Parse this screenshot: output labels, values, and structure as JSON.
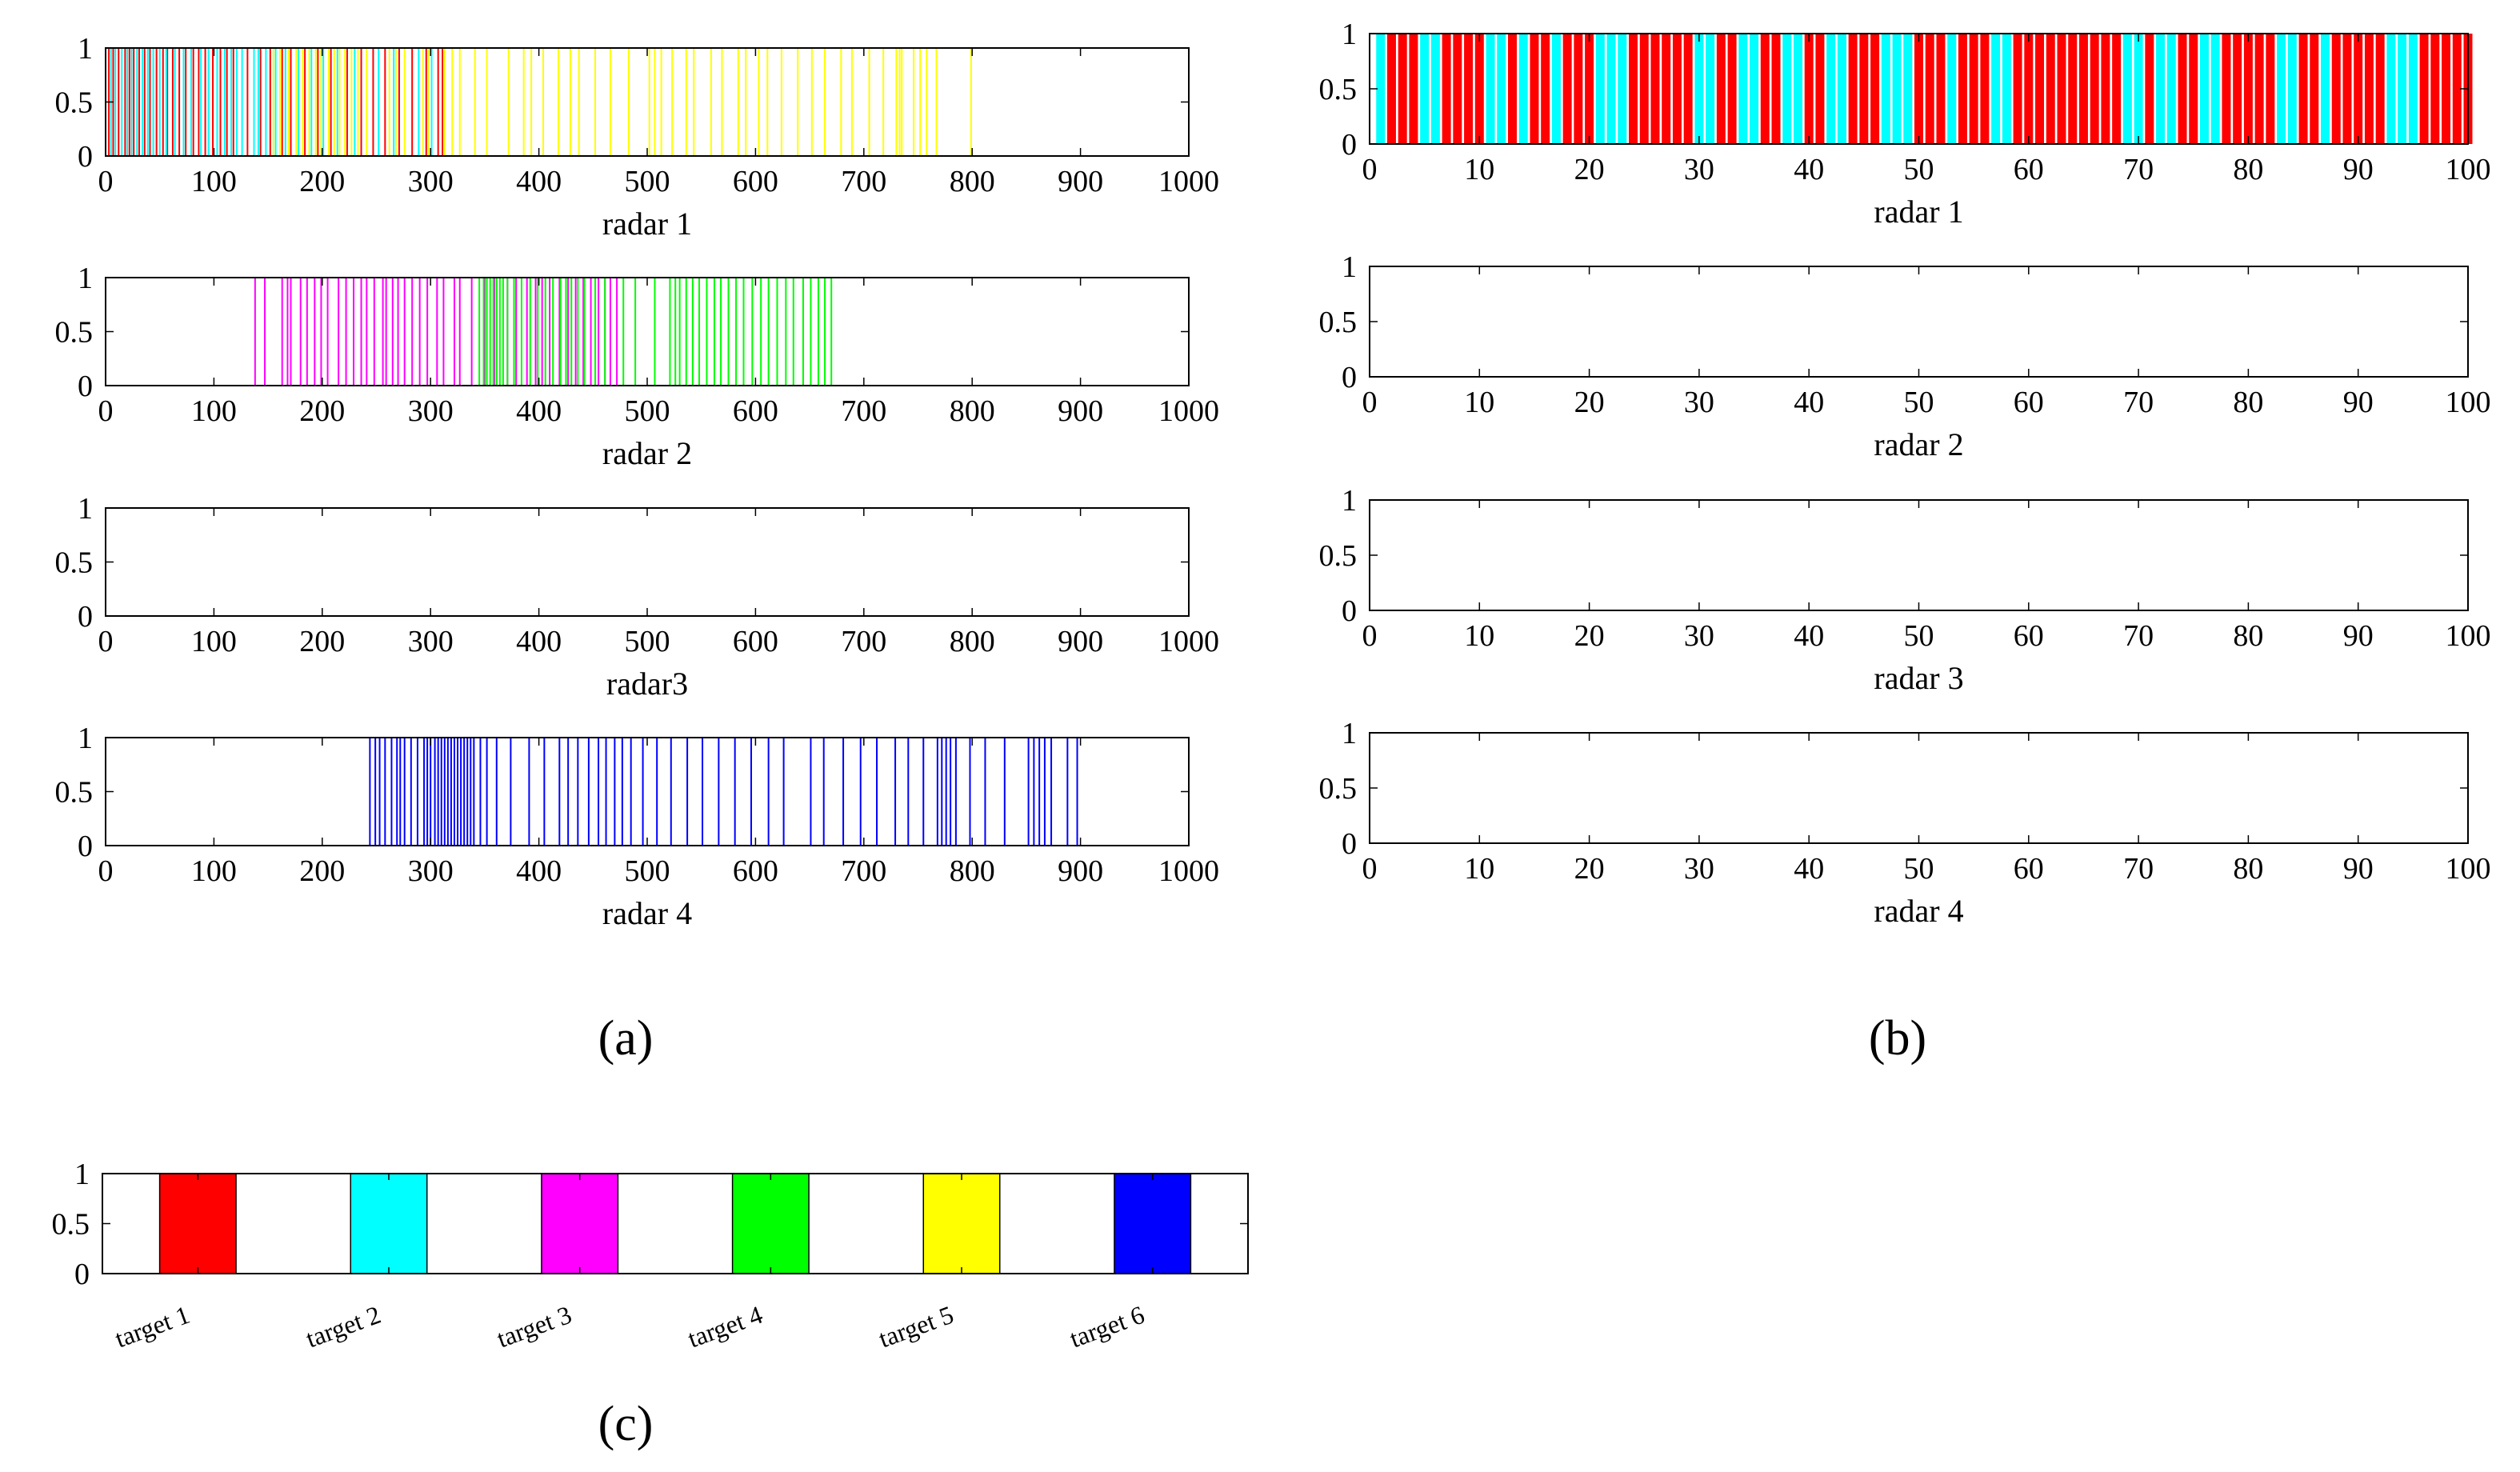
{
  "figure": {
    "panel_labels": {
      "a": "(a)",
      "b": "(b)",
      "c": "(c)"
    }
  },
  "chart_data": [
    {
      "id": "a1",
      "panel": "a",
      "type": "bar",
      "xlabel": "radar 1",
      "xlim": [
        0,
        1000
      ],
      "ylim": [
        0,
        1
      ],
      "xticks": [
        "0",
        "100",
        "200",
        "300",
        "400",
        "500",
        "600",
        "700",
        "800",
        "900",
        "1000"
      ],
      "yticks": [
        "0",
        "0.5",
        "1"
      ],
      "series": [
        {
          "name": "target 1",
          "color": "#ff0000",
          "x": [
            3,
            7,
            12,
            18,
            22,
            26,
            31,
            36,
            41,
            47,
            53,
            57,
            62,
            68,
            74,
            81,
            86,
            92,
            99,
            106,
            112,
            118,
            131,
            143,
            152,
            163,
            171,
            184,
            196,
            208,
            223,
            236,
            247,
            258,
            271,
            283,
            296,
            307,
            311
          ]
        },
        {
          "name": "target 2",
          "color": "#00ffff",
          "x": [
            5,
            9,
            15,
            20,
            24,
            29,
            34,
            39,
            44,
            50,
            56,
            64,
            72,
            79,
            88,
            95,
            103,
            110,
            116,
            121,
            126,
            137,
            141,
            148,
            157,
            166,
            178,
            190,
            201,
            214,
            230,
            252,
            266,
            289,
            301
          ]
        },
        {
          "name": "target 5",
          "color": "#ffff00",
          "x": [
            155,
            161,
            169,
            176,
            182,
            188,
            194,
            199,
            206,
            211,
            216,
            221,
            227,
            233,
            241,
            262,
            268,
            276,
            293,
            298,
            313,
            320,
            327,
            341,
            352,
            372,
            386,
            393,
            404,
            418,
            429,
            437,
            452,
            466,
            483,
            502,
            507,
            513,
            523,
            536,
            543,
            559,
            569,
            584,
            591,
            603,
            611,
            624,
            639,
            652,
            664,
            679,
            689,
            705,
            718,
            730,
            733,
            735,
            746,
            752,
            758,
            767,
            799
          ]
        }
      ]
    },
    {
      "id": "a2",
      "panel": "a",
      "type": "bar",
      "xlabel": "radar 2",
      "xlim": [
        0,
        1000
      ],
      "ylim": [
        0,
        1
      ],
      "xticks": [
        "0",
        "100",
        "200",
        "300",
        "400",
        "500",
        "600",
        "700",
        "800",
        "900",
        "1000"
      ],
      "yticks": [
        "0",
        "0.5",
        "1"
      ],
      "series": [
        {
          "name": "target 3",
          "color": "#ff00ff",
          "x": [
            138,
            147,
            163,
            168,
            171,
            180,
            186,
            193,
            199,
            205,
            215,
            222,
            229,
            236,
            241,
            248,
            256,
            259,
            265,
            270,
            276,
            283,
            290,
            297,
            306,
            312,
            322,
            327,
            338,
            350,
            359,
            371,
            379,
            389,
            397,
            403,
            410,
            419,
            427,
            434,
            441,
            448,
            455,
            461,
            466,
            472
          ]
        },
        {
          "name": "target 4",
          "color": "#00ff00",
          "x": [
            345,
            349,
            352,
            355,
            358,
            361,
            364,
            367,
            371,
            377,
            384,
            392,
            399,
            406,
            413,
            420,
            425,
            430,
            436,
            442,
            452,
            461,
            478,
            489,
            507,
            521,
            526,
            530,
            536,
            542,
            548,
            555,
            562,
            568,
            575,
            582,
            589,
            597,
            605,
            612,
            620,
            628,
            635,
            644,
            651,
            658,
            664,
            670
          ]
        }
      ]
    },
    {
      "id": "a3",
      "panel": "a",
      "type": "bar",
      "xlabel": "radar3",
      "xlim": [
        0,
        1000
      ],
      "ylim": [
        0,
        1
      ],
      "xticks": [
        "0",
        "100",
        "200",
        "300",
        "400",
        "500",
        "600",
        "700",
        "800",
        "900",
        "1000"
      ],
      "yticks": [
        "0",
        "0.5",
        "1"
      ],
      "series": []
    },
    {
      "id": "a4",
      "panel": "a",
      "type": "bar",
      "xlabel": "radar 4",
      "xlim": [
        0,
        1000
      ],
      "ylim": [
        0,
        1
      ],
      "xticks": [
        "0",
        "100",
        "200",
        "300",
        "400",
        "500",
        "600",
        "700",
        "800",
        "900",
        "1000"
      ],
      "yticks": [
        "0",
        "0.5",
        "1"
      ],
      "series": [
        {
          "name": "target 6",
          "color": "#0000ff",
          "x": [
            244,
            249,
            253,
            258,
            264,
            269,
            272,
            276,
            282,
            288,
            294,
            297,
            300,
            304,
            307,
            310,
            313,
            316,
            319,
            322,
            325,
            328,
            331,
            334,
            337,
            340,
            346,
            352,
            361,
            374,
            391,
            405,
            419,
            427,
            436,
            446,
            455,
            462,
            470,
            477,
            485,
            496,
            509,
            522,
            537,
            551,
            566,
            581,
            596,
            612,
            626,
            651,
            663,
            681,
            697,
            712,
            729,
            741,
            755,
            768,
            772,
            776,
            780,
            785,
            798,
            812,
            830,
            852,
            857,
            862,
            867,
            873,
            888,
            897
          ]
        }
      ]
    },
    {
      "id": "b1",
      "panel": "b",
      "type": "bar",
      "xlabel": "radar 1",
      "xlim": [
        0,
        100
      ],
      "ylim": [
        0,
        1
      ],
      "xticks": [
        "0",
        "10",
        "20",
        "30",
        "40",
        "50",
        "60",
        "70",
        "80",
        "90",
        "100"
      ],
      "yticks": [
        "0",
        "0.5",
        "1"
      ],
      "bar_width": 0.8,
      "series": [
        {
          "name": "target 1",
          "color": "#ff0000",
          "x": [
            2,
            3,
            4,
            7,
            8,
            9,
            10,
            13,
            15,
            16,
            18,
            19,
            20,
            24,
            25,
            26,
            27,
            28,
            29,
            32,
            33,
            36,
            37,
            40,
            41,
            44,
            45,
            46,
            50,
            51,
            52,
            54,
            55,
            56,
            59,
            60,
            61,
            62,
            63,
            64,
            65,
            66,
            67,
            68,
            71,
            74,
            75,
            78,
            79,
            80,
            81,
            82,
            85,
            86,
            88,
            89,
            90,
            91,
            92,
            96,
            97,
            98,
            99,
            100
          ]
        },
        {
          "name": "target 2",
          "color": "#00ffff",
          "x": [
            1,
            5,
            6,
            11,
            12,
            14,
            17,
            21,
            22,
            23,
            30,
            31,
            34,
            35,
            38,
            39,
            42,
            43,
            47,
            48,
            49,
            53,
            57,
            58,
            69,
            70,
            72,
            73,
            76,
            77,
            83,
            84,
            87,
            93,
            94,
            95
          ]
        }
      ]
    },
    {
      "id": "b2",
      "panel": "b",
      "type": "bar",
      "xlabel": "radar 2",
      "xlim": [
        0,
        100
      ],
      "ylim": [
        0,
        1
      ],
      "xticks": [
        "0",
        "10",
        "20",
        "30",
        "40",
        "50",
        "60",
        "70",
        "80",
        "90",
        "100"
      ],
      "yticks": [
        "0",
        "0.5",
        "1"
      ],
      "series": []
    },
    {
      "id": "b3",
      "panel": "b",
      "type": "bar",
      "xlabel": "radar 3",
      "xlim": [
        0,
        100
      ],
      "ylim": [
        0,
        1
      ],
      "xticks": [
        "0",
        "10",
        "20",
        "30",
        "40",
        "50",
        "60",
        "70",
        "80",
        "90",
        "100"
      ],
      "yticks": [
        "0",
        "0.5",
        "1"
      ],
      "series": []
    },
    {
      "id": "b4",
      "panel": "b",
      "type": "bar",
      "xlabel": "radar 4",
      "xlim": [
        0,
        100
      ],
      "ylim": [
        0,
        1
      ],
      "xticks": [
        "0",
        "10",
        "20",
        "30",
        "40",
        "50",
        "60",
        "70",
        "80",
        "90",
        "100"
      ],
      "yticks": [
        "0",
        "0.5",
        "1"
      ],
      "series": []
    },
    {
      "id": "c",
      "panel": "c",
      "type": "bar",
      "title": "",
      "xlabel": "",
      "ylim": [
        0,
        1
      ],
      "yticks": [
        "0",
        "0.5",
        "1"
      ],
      "categories": [
        "target 1",
        "target 2",
        "target 3",
        "target 4",
        "target 5",
        "target 6"
      ],
      "values": [
        1,
        1,
        1,
        1,
        1,
        1
      ],
      "colors": [
        "#ff0000",
        "#00ffff",
        "#ff00ff",
        "#00ff00",
        "#ffff00",
        "#0000ff"
      ]
    }
  ]
}
